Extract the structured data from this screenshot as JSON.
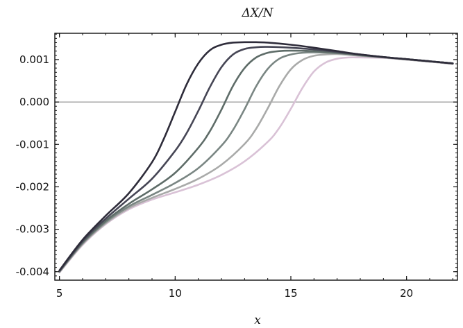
{
  "chart_data": {
    "type": "line",
    "title": "ΔX/N",
    "xlabel": "x",
    "ylabel": "",
    "xlim": [
      4.8,
      22.2
    ],
    "ylim": [
      -0.0042,
      0.00162
    ],
    "x_ticks": [
      5,
      10,
      15,
      20
    ],
    "x_tick_labels": [
      "5",
      "10",
      "15",
      "20"
    ],
    "y_ticks": [
      0.001,
      0.0,
      -0.001,
      -0.002,
      -0.003,
      -0.004
    ],
    "y_tick_labels": [
      "0.001",
      "0.000",
      "-0.001",
      "-0.002",
      "-0.003",
      "-0.004"
    ],
    "grid": false,
    "reference_line_y": 0.0,
    "reference_line_color": "#999999",
    "series": [
      {
        "color": "#2e2c3a",
        "x": [
          5,
          6,
          7,
          8,
          9,
          9.5,
          10,
          10.5,
          11,
          11.5,
          12,
          12.5,
          13,
          13.5,
          14,
          15,
          16,
          17,
          18,
          19,
          20,
          21,
          22
        ],
        "y": [
          -0.00397,
          -0.00325,
          -0.00268,
          -0.00215,
          -0.00142,
          -0.00088,
          -0.00023,
          0.00042,
          0.00091,
          0.00122,
          0.00135,
          0.0014,
          0.00141,
          0.00141,
          0.0014,
          0.00135,
          0.00128,
          0.0012,
          0.00112,
          0.00106,
          0.00101,
          0.00096,
          0.00091
        ]
      },
      {
        "color": "#464655",
        "x": [
          5,
          6,
          7,
          8,
          9,
          10,
          10.5,
          11,
          11.5,
          12,
          12.5,
          13,
          13.5,
          14,
          15,
          16,
          17,
          18,
          19,
          20,
          21,
          22
        ],
        "y": [
          -0.00398,
          -0.00328,
          -0.00275,
          -0.00228,
          -0.00181,
          -0.00115,
          -0.00073,
          -0.00021,
          0.00035,
          0.00082,
          0.00112,
          0.00125,
          0.00129,
          0.0013,
          0.00128,
          0.00124,
          0.00118,
          0.00112,
          0.00106,
          0.00101,
          0.00096,
          0.00091
        ]
      },
      {
        "color": "#5e6c68",
        "x": [
          5,
          6,
          7,
          8,
          9,
          10,
          11,
          11.5,
          12,
          12.5,
          13,
          13.5,
          14,
          14.5,
          15,
          16,
          17,
          18,
          19,
          20,
          21,
          22
        ],
        "y": [
          -0.00399,
          -0.00331,
          -0.0028,
          -0.0024,
          -0.00206,
          -0.00167,
          -0.00108,
          -0.00069,
          -0.00018,
          0.00038,
          0.0008,
          0.00105,
          0.00116,
          0.0012,
          0.00121,
          0.0012,
          0.00116,
          0.00111,
          0.00106,
          0.00101,
          0.00096,
          0.00091
        ]
      },
      {
        "color": "#7a8683",
        "x": [
          5,
          6,
          7,
          8,
          9,
          10,
          11,
          12,
          12.5,
          13,
          13.5,
          14,
          14.5,
          15,
          15.5,
          16,
          17,
          18,
          19,
          20,
          21,
          22
        ],
        "y": [
          -0.004,
          -0.00333,
          -0.00283,
          -0.00246,
          -0.00219,
          -0.00191,
          -0.00156,
          -0.00103,
          -0.00066,
          -0.00017,
          0.00037,
          0.00078,
          0.00102,
          0.00112,
          0.00116,
          0.00117,
          0.00115,
          0.0011,
          0.00105,
          0.00101,
          0.00096,
          0.00091
        ]
      },
      {
        "color": "#a9aaa9",
        "x": [
          5,
          6,
          7,
          8,
          9,
          10,
          11,
          12,
          13,
          13.5,
          14,
          14.5,
          15,
          15.5,
          16,
          16.5,
          17,
          18,
          19,
          20,
          21,
          22
        ],
        "y": [
          -0.00401,
          -0.00335,
          -0.00286,
          -0.0025,
          -0.00226,
          -0.00205,
          -0.00181,
          -0.00148,
          -0.00099,
          -0.00063,
          -0.00015,
          0.00037,
          0.00077,
          0.00099,
          0.00109,
          0.00112,
          0.00113,
          0.00109,
          0.00105,
          0.001,
          0.00095,
          0.0009
        ]
      },
      {
        "color": "#d9c2d6",
        "x": [
          5,
          6,
          7,
          8,
          9,
          10,
          11,
          12,
          13,
          14,
          14.5,
          15,
          15.5,
          16,
          16.5,
          17,
          17.5,
          18,
          19,
          20,
          21,
          22
        ],
        "y": [
          -0.00402,
          -0.00337,
          -0.00288,
          -0.00253,
          -0.0023,
          -0.00213,
          -0.00195,
          -0.00172,
          -0.0014,
          -0.00094,
          -0.00061,
          -0.00016,
          0.00033,
          0.00072,
          0.00093,
          0.00102,
          0.00105,
          0.00105,
          0.00104,
          0.001,
          0.00095,
          0.0009
        ]
      }
    ]
  }
}
